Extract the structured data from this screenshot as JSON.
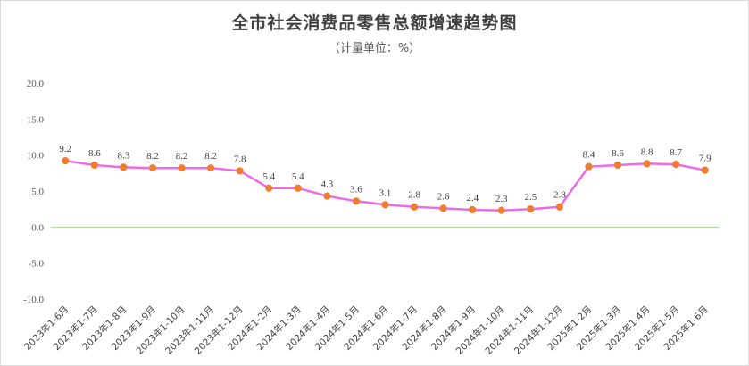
{
  "chart_data": {
    "type": "line",
    "title": "全市社会消费品零售总额增速趋势图",
    "subtitle": "（计量单位：%）",
    "ylim": [
      -10,
      20
    ],
    "yticks": [
      "20.0",
      "15.0",
      "10.0",
      "5.0",
      "0.0",
      "-5.0",
      "-10.0"
    ],
    "categories": [
      "2023年1-6月",
      "2023年1-7月",
      "2023年1-8月",
      "2023年1-9月",
      "2023年1-10月",
      "2023年1-11月",
      "2023年1-12月",
      "2024年1-2月",
      "2024年1-3月",
      "2024年1-4月",
      "2024年1-5月",
      "2024年1-6月",
      "2024年1-7月",
      "2024年1-8月",
      "2024年1-9月",
      "2024年1-10月",
      "2024年1-11月",
      "2024年1-12月",
      "2025年1-2月",
      "2025年1-3月",
      "2025年1-4月",
      "2025年1-5月",
      "2025年1-6月"
    ],
    "values": [
      9.2,
      8.6,
      8.3,
      8.2,
      8.2,
      8.2,
      7.8,
      5.4,
      5.4,
      4.3,
      3.6,
      3.1,
      2.8,
      2.6,
      2.4,
      2.3,
      2.5,
      2.8,
      8.4,
      8.6,
      8.8,
      8.7,
      7.9
    ],
    "line_color": "#ee6ae6",
    "marker_color": "#ed7d31",
    "zero_line_color": "#a9d18e",
    "grid": false,
    "legend": "none"
  }
}
